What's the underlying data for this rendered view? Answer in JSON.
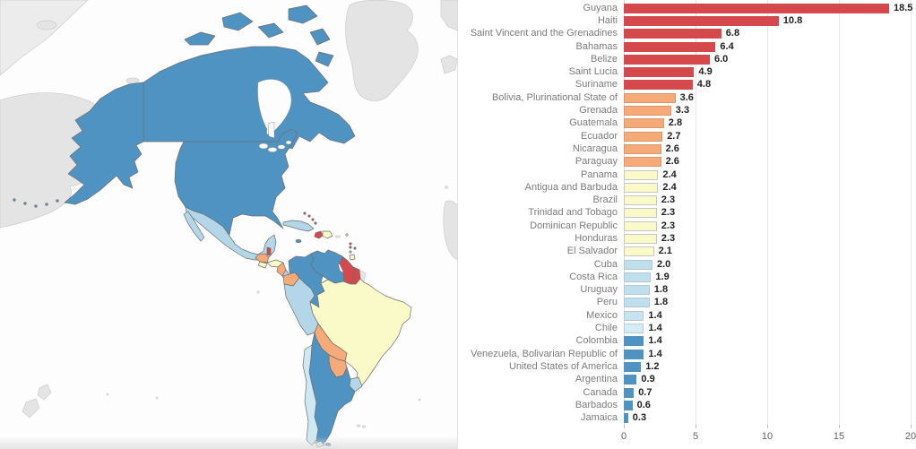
{
  "chart_data": {
    "type": "bar",
    "orientation": "horizontal",
    "title": "",
    "xlabel": "",
    "ylabel": "",
    "xlim": [
      0,
      20
    ],
    "x_ticks": [
      0,
      5,
      10,
      15,
      20
    ],
    "grid": true,
    "legend": false,
    "categories": [
      "Guyana",
      "Haiti",
      "Saint Vincent and the Grenadines",
      "Bahamas",
      "Belize",
      "Saint Lucia",
      "Suriname",
      "Bolivia, Plurinational State of",
      "Grenada",
      "Guatemala",
      "Ecuador",
      "Nicaragua",
      "Paraguay",
      "Panama",
      "Antigua and Barbuda",
      "Brazil",
      "Trinidad and Tobago",
      "Dominican Republic",
      "Honduras",
      "El Salvador",
      "Cuba",
      "Costa Rica",
      "Uruguay",
      "Peru",
      "Mexico",
      "Chile",
      "Colombia",
      "Venezuela, Bolivarian Republic of",
      "United States of America",
      "Argentina",
      "Canada",
      "Barbados",
      "Jamaica"
    ],
    "values": [
      18.5,
      10.8,
      6.8,
      6.4,
      6.0,
      4.9,
      4.8,
      3.6,
      3.3,
      2.8,
      2.7,
      2.6,
      2.6,
      2.4,
      2.4,
      2.3,
      2.3,
      2.3,
      2.3,
      2.1,
      2.0,
      1.9,
      1.8,
      1.8,
      1.4,
      1.4,
      1.4,
      1.4,
      1.2,
      0.9,
      0.7,
      0.6,
      0.3
    ],
    "rows": [
      {
        "label": "Guyana",
        "value": 18.5,
        "value_label": "18.5",
        "color": "#d5484c",
        "border": null
      },
      {
        "label": "Haiti",
        "value": 10.8,
        "value_label": "10.8",
        "color": "#d5484c",
        "border": null
      },
      {
        "label": "Saint Vincent and the Grenadines",
        "value": 6.8,
        "value_label": "6.8",
        "color": "#d5484c",
        "border": null
      },
      {
        "label": "Bahamas",
        "value": 6.4,
        "value_label": "6.4",
        "color": "#d5484c",
        "border": null
      },
      {
        "label": "Belize",
        "value": 6.0,
        "value_label": "6.0",
        "color": "#d5484c",
        "border": null
      },
      {
        "label": "Saint Lucia",
        "value": 4.9,
        "value_label": "4.9",
        "color": "#d5484c",
        "border": null
      },
      {
        "label": "Suriname",
        "value": 4.8,
        "value_label": "4.8",
        "color": "#d5484c",
        "border": null
      },
      {
        "label": "Bolivia, Plurinational State of",
        "value": 3.6,
        "value_label": "3.6",
        "color": "#f5aa78",
        "border": "#d9976a"
      },
      {
        "label": "Grenada",
        "value": 3.3,
        "value_label": "3.3",
        "color": "#f5aa78",
        "border": "#d9976a"
      },
      {
        "label": "Guatemala",
        "value": 2.8,
        "value_label": "2.8",
        "color": "#f5aa78",
        "border": "#d9976a"
      },
      {
        "label": "Ecuador",
        "value": 2.7,
        "value_label": "2.7",
        "color": "#f5aa78",
        "border": "#d9976a"
      },
      {
        "label": "Nicaragua",
        "value": 2.6,
        "value_label": "2.6",
        "color": "#f5aa78",
        "border": "#d9976a"
      },
      {
        "label": "Paraguay",
        "value": 2.6,
        "value_label": "2.6",
        "color": "#f5aa78",
        "border": "#d9976a"
      },
      {
        "label": "Panama",
        "value": 2.4,
        "value_label": "2.4",
        "color": "#fafac8",
        "border": "#c6c6c6"
      },
      {
        "label": "Antigua and Barbuda",
        "value": 2.4,
        "value_label": "2.4",
        "color": "#fafac8",
        "border": "#c6c6c6"
      },
      {
        "label": "Brazil",
        "value": 2.3,
        "value_label": "2.3",
        "color": "#fafac8",
        "border": "#c6c6c6"
      },
      {
        "label": "Trinidad and Tobago",
        "value": 2.3,
        "value_label": "2.3",
        "color": "#fafac8",
        "border": "#c6c6c6"
      },
      {
        "label": "Dominican Republic",
        "value": 2.3,
        "value_label": "2.3",
        "color": "#fafac8",
        "border": "#c6c6c6"
      },
      {
        "label": "Honduras",
        "value": 2.3,
        "value_label": "2.3",
        "color": "#fafac8",
        "border": "#c6c6c6"
      },
      {
        "label": "El Salvador",
        "value": 2.1,
        "value_label": "2.1",
        "color": "#fafac8",
        "border": "#c6c6c6"
      },
      {
        "label": "Cuba",
        "value": 2.0,
        "value_label": "2.0",
        "color": "#bfdfec",
        "border": "#b2c8d2"
      },
      {
        "label": "Costa Rica",
        "value": 1.9,
        "value_label": "1.9",
        "color": "#bfdfec",
        "border": "#b2c8d2"
      },
      {
        "label": "Uruguay",
        "value": 1.8,
        "value_label": "1.8",
        "color": "#bfdfec",
        "border": "#b2c8d2"
      },
      {
        "label": "Peru",
        "value": 1.8,
        "value_label": "1.8",
        "color": "#bfdfec",
        "border": "#b2c8d2"
      },
      {
        "label": "Mexico",
        "value": 1.4,
        "value_label": "1.4",
        "color": "#c7e3f0",
        "border": "#b2c8d2"
      },
      {
        "label": "Chile",
        "value": 1.4,
        "value_label": "1.4",
        "color": "#d6ecf5",
        "border": "#b8cdd6"
      },
      {
        "label": "Colombia",
        "value": 1.4,
        "value_label": "1.4",
        "color": "#4f93c3",
        "border": null
      },
      {
        "label": "Venezuela, Bolivarian Republic of",
        "value": 1.4,
        "value_label": "1.4",
        "color": "#4f93c3",
        "border": null
      },
      {
        "label": "United States of America",
        "value": 1.2,
        "value_label": "1.2",
        "color": "#4f93c3",
        "border": null
      },
      {
        "label": "Argentina",
        "value": 0.9,
        "value_label": "0.9",
        "color": "#4f93c3",
        "border": null
      },
      {
        "label": "Canada",
        "value": 0.7,
        "value_label": "0.7",
        "color": "#4f93c3",
        "border": null
      },
      {
        "label": "Barbados",
        "value": 0.6,
        "value_label": "0.6",
        "color": "#4f93c3",
        "border": null
      },
      {
        "label": "Jamaica",
        "value": 0.3,
        "value_label": "0.3",
        "color": "#4f93c3",
        "border": null
      }
    ]
  },
  "map": {
    "type": "choropleth",
    "ocean_color": "#fdfdfd",
    "no_data_fill": "#e4e4e4",
    "border_color": "#6d6d6d",
    "palette": {
      "high_red": "#d5484c",
      "orange": "#f5aa78",
      "pale_yellow": "#fafac8",
      "light_blue": "#b3d7e8",
      "lighter_blue": "#cfe9f3",
      "blue": "#4f93c3"
    },
    "countries": {
      "canada": "#4f93c3",
      "united-states": "#4f93c3",
      "mexico": "#b3d7e8",
      "guatemala": "#f5aa78",
      "belize": "#d5484c",
      "honduras": "#fafac8",
      "el-salvador": "#fafac8",
      "nicaragua": "#f5aa78",
      "costa-rica": "#b3d7e8",
      "panama": "#fafac8",
      "cuba": "#b3d7e8",
      "bahamas": "#d5484c",
      "jamaica": "#4f93c3",
      "haiti": "#d5484c",
      "dominican-republic": "#fafac8",
      "antigua-and-barbuda": "#fafac8",
      "saint-vincent": "#d5484c",
      "saint-lucia": "#d5484c",
      "grenada": "#f5aa78",
      "barbados": "#4f93c3",
      "trinidad-and-tobago": "#fafac8",
      "colombia": "#4f93c3",
      "venezuela": "#4f93c3",
      "guyana": "#d5484c",
      "suriname": "#d5484c",
      "ecuador": "#f5aa78",
      "peru": "#b3d7e8",
      "brazil": "#fafac8",
      "bolivia": "#f5aa78",
      "paraguay": "#f5aa78",
      "chile": "#cfe9f3",
      "argentina": "#4f93c3",
      "uruguay": "#b3d7e8",
      "french-guiana": "#e4e4e4",
      "puerto-rico": "#e4e4e4",
      "greenland": "#e4e4e4",
      "iceland": "#e4e4e4",
      "russia": "#e4e4e4",
      "arctic-corner": "#ececec",
      "europe-corner": "#e4e4e4",
      "africa": "#e4e4e4",
      "new-zealand": "#e4e4e4",
      "falklands": "#e4e4e4",
      "small-island": "#e4e4e4"
    }
  },
  "layout_constants_note": ""
}
